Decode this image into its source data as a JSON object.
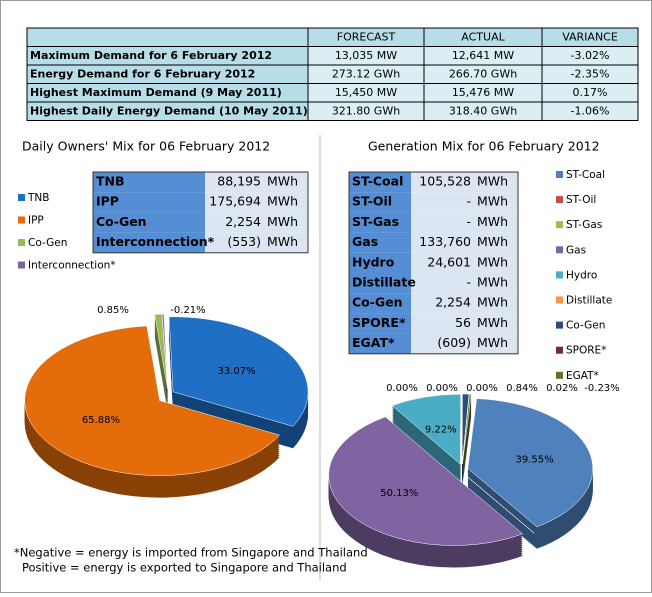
{
  "summary_table": {
    "header": [
      "FORECAST",
      "ACTUAL",
      "VARIANCE"
    ],
    "rows": [
      [
        "Maximum Demand for 6 February 2012",
        "13,035 MW",
        "12,641 MW",
        "-3.02%"
      ],
      [
        "Energy Demand for 6 February 2012",
        "273.12 GWh",
        "266.70 GWh",
        "-2.35%"
      ],
      [
        "Highest Maximum Demand (9 May 2011)",
        "15,450 MW",
        "15,476 MW",
        "0.17%"
      ],
      [
        "Highest Daily Energy Demand (10 May 2011)",
        "321.80 GWh",
        "318.40 GWh",
        "-1.06%"
      ]
    ]
  },
  "owners_table": {
    "rows": [
      [
        "TNB",
        "88,195",
        "MWh"
      ],
      [
        "IPP",
        "175,694",
        "MWh"
      ],
      [
        "Co-Gen",
        "2,254",
        "MWh"
      ],
      [
        "Interconnection*",
        "(553)",
        "MWh"
      ]
    ]
  },
  "generation_table": {
    "rows": [
      [
        "ST-Coal",
        "105,528",
        "MWh"
      ],
      [
        "ST-Oil",
        "-",
        "MWh"
      ],
      [
        "ST-Gas",
        "-",
        "MWh"
      ],
      [
        "Gas",
        "133,760",
        "MWh"
      ],
      [
        "Hydro",
        "24,601",
        "MWh"
      ],
      [
        "Distillate",
        "-",
        "MWh"
      ],
      [
        "Co-Gen",
        "2,254",
        "MWh"
      ],
      [
        "SPORE*",
        "56",
        "MWh"
      ],
      [
        "EGAT*",
        "(609)",
        "MWh"
      ]
    ]
  },
  "chart_data": [
    {
      "type": "pie",
      "title": "Daily Owners' Mix for 06 February 2012",
      "categories": [
        "TNB",
        "IPP",
        "Co-Gen",
        "Interconnection*"
      ],
      "values": [
        33.07,
        65.88,
        0.85,
        -0.21
      ],
      "value_labels": [
        "33.07%",
        "65.88%",
        "0.85%",
        "-0.21%"
      ],
      "colors": [
        "#1f6fc5",
        "#e46c0a",
        "#9bbb59",
        "#7f5fa0"
      ]
    },
    {
      "type": "pie",
      "title": "Generation Mix for 06 February 2012",
      "categories": [
        "ST-Coal",
        "ST-Oil",
        "ST-Gas",
        "Gas",
        "Hydro",
        "Distillate",
        "Co-Gen",
        "SPORE*",
        "EGAT*"
      ],
      "values": [
        39.55,
        0.0,
        0.0,
        50.13,
        9.22,
        0.0,
        0.84,
        0.02,
        -0.23
      ],
      "value_labels": [
        "39.55%",
        "0.00%",
        "0.00%",
        "50.13%",
        "9.22%",
        "0.00%",
        "0.84%",
        "0.02%",
        "-0.23%"
      ],
      "colors": [
        "#4f81bd",
        "#c0504d",
        "#9bbb59",
        "#8064a2",
        "#4bacc6",
        "#f79646",
        "#2c4d75",
        "#772c2a",
        "#5f7530"
      ]
    }
  ],
  "footnote": [
    "*Negative = energy is imported from Singapore and Thailand",
    "Positive = energy is exported to Singapore and Thailand"
  ]
}
